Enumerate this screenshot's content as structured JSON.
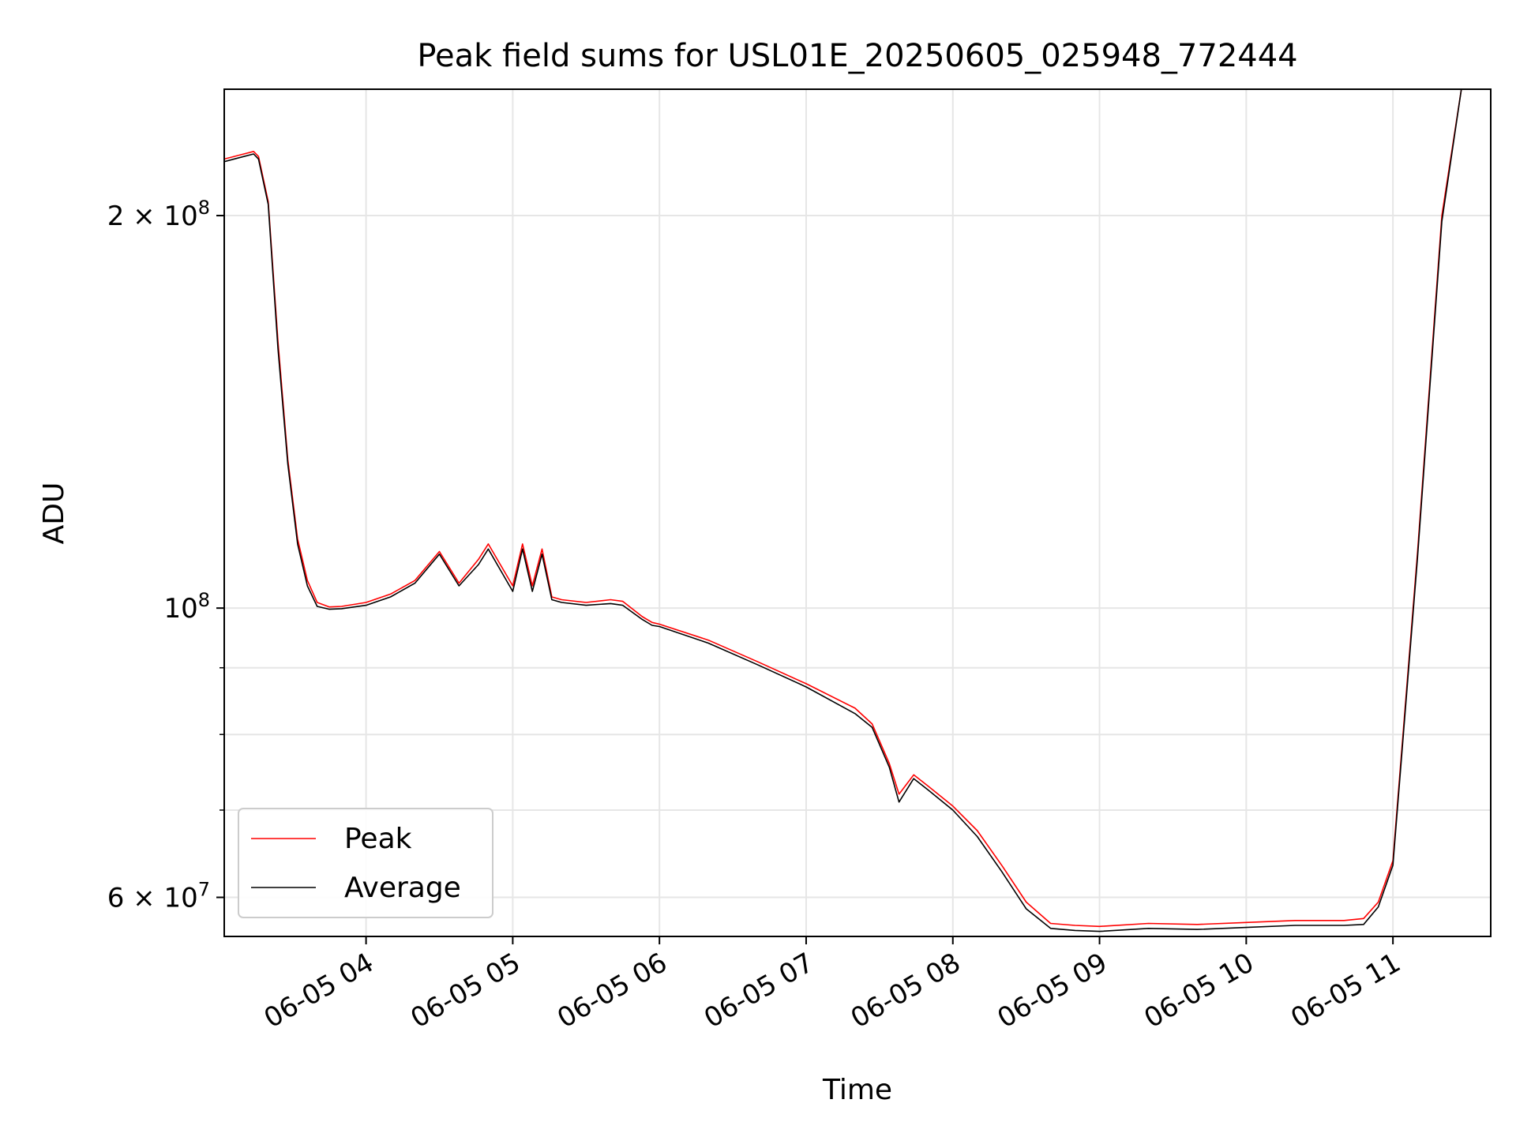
{
  "chart_data": {
    "type": "line",
    "title": "Peak field sums for USL01E_20250605_025948_772444",
    "xlabel": "Time",
    "ylabel": "ADU",
    "y_scale": "log",
    "ylim": [
      56000000,
      250000000
    ],
    "xlim": [
      "2025-06-05 03:02",
      "2025-06-05 11:40"
    ],
    "x_ticks": [
      {
        "value": "2025-06-05 04:00",
        "label": "06-05 04"
      },
      {
        "value": "2025-06-05 05:00",
        "label": "06-05 05"
      },
      {
        "value": "2025-06-05 06:00",
        "label": "06-05 06"
      },
      {
        "value": "2025-06-05 07:00",
        "label": "06-05 07"
      },
      {
        "value": "2025-06-05 08:00",
        "label": "06-05 08"
      },
      {
        "value": "2025-06-05 09:00",
        "label": "06-05 09"
      },
      {
        "value": "2025-06-05 10:00",
        "label": "06-05 10"
      },
      {
        "value": "2025-06-05 11:00",
        "label": "06-05 11"
      }
    ],
    "y_major_ticks": [
      {
        "value": 60000000,
        "base": "6 × 10",
        "exp": "7"
      },
      {
        "value": 100000000,
        "base": "10",
        "exp": "8"
      },
      {
        "value": 200000000,
        "base": "2 × 10",
        "exp": "8"
      }
    ],
    "y_minor_ticks": [
      70000000,
      80000000,
      90000000
    ],
    "grid": true,
    "legend_position": "lower-left",
    "series": [
      {
        "name": "Peak",
        "color": "#ff0000",
        "x": [
          "2025-06-05 03:02",
          "2025-06-05 03:10",
          "2025-06-05 03:14",
          "2025-06-05 03:16",
          "2025-06-05 03:20",
          "2025-06-05 03:24",
          "2025-06-05 03:28",
          "2025-06-05 03:32",
          "2025-06-05 03:36",
          "2025-06-05 03:40",
          "2025-06-05 03:45",
          "2025-06-05 03:50",
          "2025-06-05 04:00",
          "2025-06-05 04:10",
          "2025-06-05 04:20",
          "2025-06-05 04:30",
          "2025-06-05 04:38",
          "2025-06-05 04:46",
          "2025-06-05 04:50",
          "2025-06-05 05:00",
          "2025-06-05 05:04",
          "2025-06-05 05:08",
          "2025-06-05 05:12",
          "2025-06-05 05:16",
          "2025-06-05 05:20",
          "2025-06-05 05:30",
          "2025-06-05 05:40",
          "2025-06-05 05:45",
          "2025-06-05 05:53",
          "2025-06-05 05:57",
          "2025-06-05 06:00",
          "2025-06-05 06:20",
          "2025-06-05 06:40",
          "2025-06-05 07:00",
          "2025-06-05 07:20",
          "2025-06-05 07:27",
          "2025-06-05 07:34",
          "2025-06-05 07:38",
          "2025-06-05 07:44",
          "2025-06-05 07:50",
          "2025-06-05 08:00",
          "2025-06-05 08:10",
          "2025-06-05 08:20",
          "2025-06-05 08:30",
          "2025-06-05 08:40",
          "2025-06-05 08:50",
          "2025-06-05 09:00",
          "2025-06-05 09:20",
          "2025-06-05 09:40",
          "2025-06-05 10:00",
          "2025-06-05 10:20",
          "2025-06-05 10:40",
          "2025-06-05 10:48",
          "2025-06-05 10:54",
          "2025-06-05 11:00",
          "2025-06-05 11:10",
          "2025-06-05 11:20",
          "2025-06-05 11:28"
        ],
        "y": [
          221000000,
          223000000,
          224000000,
          222000000,
          205000000,
          160000000,
          130000000,
          113000000,
          105000000,
          101000000,
          100200000,
          100300000,
          101000000,
          102500000,
          105000000,
          110500000,
          104500000,
          109000000,
          112000000,
          104000000,
          112000000,
          104000000,
          111000000,
          102000000,
          101500000,
          101000000,
          101500000,
          101200000,
          98500000,
          97500000,
          97200000,
          94500000,
          91000000,
          87500000,
          83800000,
          81500000,
          76000000,
          72000000,
          74500000,
          73000000,
          70500000,
          67500000,
          63500000,
          59500000,
          57300000,
          57100000,
          57000000,
          57300000,
          57200000,
          57400000,
          57600000,
          57600000,
          57800000,
          59500000,
          64000000,
          110000000,
          200000000,
          250000000
        ]
      },
      {
        "name": "Average",
        "color": "#000000",
        "x": [
          "2025-06-05 03:02",
          "2025-06-05 03:10",
          "2025-06-05 03:14",
          "2025-06-05 03:16",
          "2025-06-05 03:20",
          "2025-06-05 03:24",
          "2025-06-05 03:28",
          "2025-06-05 03:32",
          "2025-06-05 03:36",
          "2025-06-05 03:40",
          "2025-06-05 03:45",
          "2025-06-05 03:50",
          "2025-06-05 04:00",
          "2025-06-05 04:10",
          "2025-06-05 04:20",
          "2025-06-05 04:30",
          "2025-06-05 04:38",
          "2025-06-05 04:46",
          "2025-06-05 04:50",
          "2025-06-05 05:00",
          "2025-06-05 05:04",
          "2025-06-05 05:08",
          "2025-06-05 05:12",
          "2025-06-05 05:16",
          "2025-06-05 05:20",
          "2025-06-05 05:30",
          "2025-06-05 05:40",
          "2025-06-05 05:45",
          "2025-06-05 05:53",
          "2025-06-05 05:57",
          "2025-06-05 06:00",
          "2025-06-05 06:20",
          "2025-06-05 06:40",
          "2025-06-05 07:00",
          "2025-06-05 07:20",
          "2025-06-05 07:27",
          "2025-06-05 07:34",
          "2025-06-05 07:38",
          "2025-06-05 07:44",
          "2025-06-05 07:50",
          "2025-06-05 08:00",
          "2025-06-05 08:10",
          "2025-06-05 08:20",
          "2025-06-05 08:30",
          "2025-06-05 08:40",
          "2025-06-05 08:50",
          "2025-06-05 09:00",
          "2025-06-05 09:20",
          "2025-06-05 09:40",
          "2025-06-05 10:00",
          "2025-06-05 10:20",
          "2025-06-05 10:40",
          "2025-06-05 10:48",
          "2025-06-05 10:54",
          "2025-06-05 11:00",
          "2025-06-05 11:10",
          "2025-06-05 11:20",
          "2025-06-05 11:28"
        ],
        "y": [
          220000000,
          222000000,
          223000000,
          221000000,
          204000000,
          158000000,
          129000000,
          112000000,
          104000000,
          100300000,
          99800000,
          99900000,
          100500000,
          102000000,
          104500000,
          110000000,
          104000000,
          108000000,
          111000000,
          103000000,
          111000000,
          103000000,
          110000000,
          101500000,
          101000000,
          100500000,
          100800000,
          100500000,
          98000000,
          97000000,
          96800000,
          94000000,
          90500000,
          87000000,
          83000000,
          81000000,
          75500000,
          71000000,
          74000000,
          72500000,
          70000000,
          66800000,
          62800000,
          58800000,
          56800000,
          56600000,
          56500000,
          56800000,
          56700000,
          56900000,
          57100000,
          57100000,
          57200000,
          59000000,
          63500000,
          109000000,
          198000000,
          250000000
        ]
      }
    ]
  }
}
